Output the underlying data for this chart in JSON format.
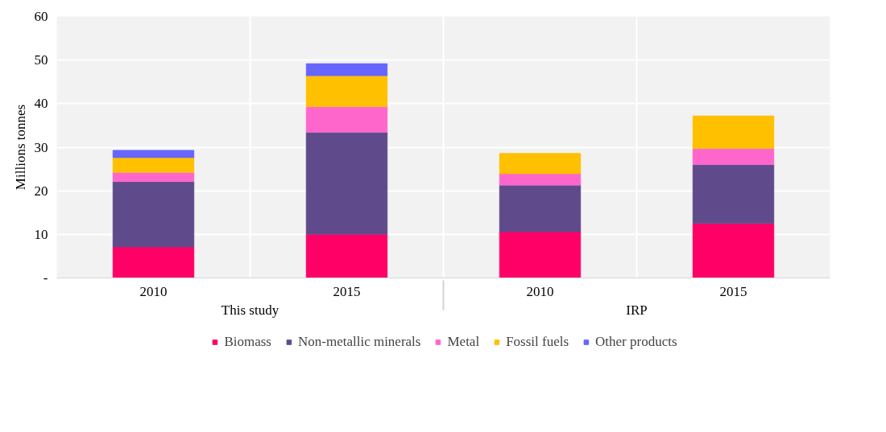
{
  "chart_data": {
    "type": "bar",
    "stacked": true,
    "ylabel": "Millions tonnes",
    "categories": [
      "2010",
      "2015",
      "2010",
      "2015"
    ],
    "annotations": [
      "This study",
      "IRP"
    ],
    "series": [
      {
        "name": "Biomass",
        "color": "#ff0066",
        "values": [
          7.1,
          10.0,
          10.6,
          12.5
        ]
      },
      {
        "name": "Non-metallic minerals",
        "color": "#5f4b8b",
        "values": [
          15.0,
          23.4,
          10.7,
          13.5
        ]
      },
      {
        "name": "Metal",
        "color": "#ff66cc",
        "values": [
          2.1,
          5.9,
          2.6,
          3.7
        ]
      },
      {
        "name": "Fossil fuels",
        "color": "#ffc000",
        "values": [
          3.4,
          7.1,
          4.7,
          7.5
        ]
      },
      {
        "name": "Other products",
        "color": "#6666ff",
        "values": [
          1.7,
          2.8,
          null,
          null
        ]
      }
    ],
    "ylim": [
      0,
      60
    ],
    "yticks": [
      {
        "value": 0,
        "label": "-"
      },
      10,
      20,
      30,
      40,
      50,
      60
    ],
    "grid": true,
    "legend": "bottom"
  }
}
